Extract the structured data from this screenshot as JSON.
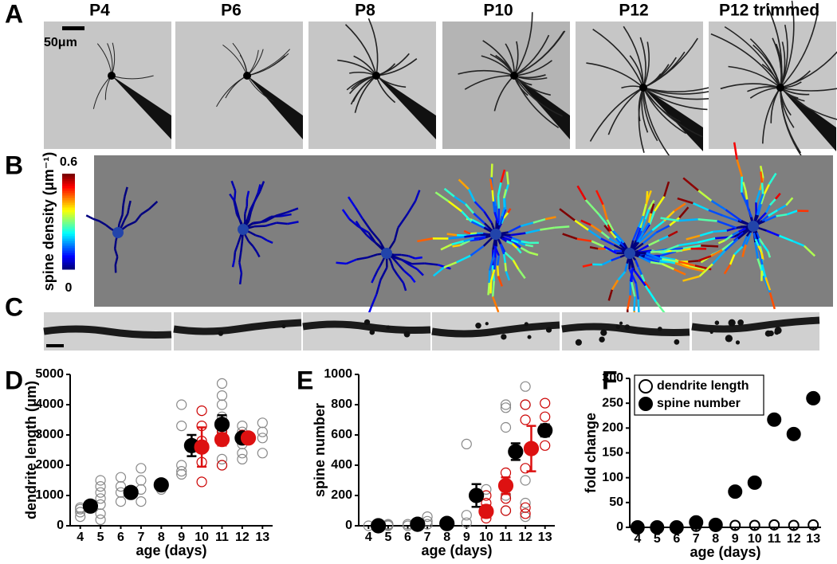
{
  "panel_labels": [
    "A",
    "B",
    "C"
  ],
  "image_titles": [
    "P4",
    "P6",
    "P8",
    "P10",
    "P12",
    "P12 trimmed"
  ],
  "scale_bar": "50μm",
  "colorbar": {
    "label": "spine density (μm⁻¹)",
    "ticks": [
      0,
      0.6
    ]
  },
  "chart_data": [
    {
      "type": "scatter",
      "panel": "D",
      "xlabel": "age (days)",
      "ylabel": "dendrite length (μm)",
      "xlim": [
        3.5,
        13.5
      ],
      "ylim": [
        0,
        5000
      ],
      "xticks": [
        4,
        5,
        6,
        7,
        8,
        9,
        10,
        11,
        12,
        13
      ],
      "yticks": [
        0,
        1000,
        2000,
        3000,
        4000,
        5000
      ],
      "series": [
        {
          "marker": "open",
          "color": "#888888",
          "x": [
            4,
            4,
            4,
            4,
            5,
            5,
            5,
            5,
            5,
            5,
            5,
            6,
            6,
            6,
            6,
            7,
            7,
            7,
            7,
            8,
            8,
            8,
            9,
            9,
            9,
            9,
            9,
            11,
            11,
            11,
            11,
            11,
            11,
            11,
            12,
            12,
            12,
            12,
            12,
            12,
            13,
            13,
            13,
            13
          ],
          "values": [
            300,
            450,
            550,
            600,
            200,
            400,
            700,
            900,
            1100,
            1300,
            1500,
            800,
            1100,
            1300,
            1600,
            800,
            1200,
            1500,
            1900,
            1200,
            1300,
            1400,
            1700,
            1800,
            2000,
            3300,
            4000,
            2000,
            2200,
            3200,
            3600,
            4000,
            4300,
            4700,
            2200,
            2400,
            2700,
            2900,
            3100,
            3300,
            2400,
            2900,
            3100,
            3400
          ]
        },
        {
          "marker": "open",
          "color": "#cc0000",
          "x": [
            10,
            10,
            10,
            10,
            10,
            11,
            11,
            11,
            11,
            12,
            12,
            12
          ],
          "values": [
            1450,
            2100,
            2800,
            3300,
            3800,
            2000,
            2800,
            2900,
            3100,
            2850,
            2950,
            3000
          ]
        },
        {
          "marker": "filled",
          "color": "#000000",
          "x": [
            4.5,
            6.5,
            8,
            9.5,
            11,
            12
          ],
          "values": [
            650,
            1100,
            1350,
            2650,
            3350,
            2900
          ],
          "errors": [
            0,
            0,
            0,
            350,
            300,
            0
          ]
        },
        {
          "marker": "filled",
          "color": "#dd1111",
          "x": [
            10,
            11,
            12.3
          ],
          "values": [
            2600,
            2850,
            2900
          ],
          "errors": [
            650,
            200,
            50
          ]
        }
      ]
    },
    {
      "type": "scatter",
      "panel": "E",
      "xlabel": "age (days)",
      "ylabel": "spine number",
      "xlim": [
        3.5,
        13.5
      ],
      "ylim": [
        0,
        1000
      ],
      "xticks": [
        4,
        5,
        6,
        7,
        8,
        9,
        10,
        11,
        12,
        13
      ],
      "yticks": [
        0,
        200,
        400,
        600,
        800,
        1000
      ],
      "series": [
        {
          "marker": "open",
          "color": "#888888",
          "x": [
            4,
            5,
            5,
            5,
            6,
            6,
            7,
            7,
            7,
            9,
            9,
            9,
            10,
            11,
            11,
            11,
            11,
            11,
            12,
            12,
            12,
            12,
            12
          ],
          "values": [
            0,
            0,
            5,
            10,
            0,
            10,
            10,
            30,
            60,
            20,
            70,
            540,
            240,
            100,
            200,
            650,
            780,
            800,
            60,
            150,
            300,
            800,
            920
          ]
        },
        {
          "marker": "open",
          "color": "#cc0000",
          "x": [
            10,
            10,
            10,
            10,
            11,
            11,
            11,
            11,
            12,
            12,
            12,
            12,
            12,
            13,
            13,
            13,
            13
          ],
          "values": [
            50,
            80,
            150,
            200,
            100,
            180,
            250,
            350,
            80,
            120,
            380,
            700,
            800,
            530,
            620,
            720,
            810
          ]
        },
        {
          "marker": "filled",
          "color": "#000000",
          "x": [
            4.5,
            6.5,
            8,
            9.5,
            11.5,
            13
          ],
          "values": [
            0,
            10,
            15,
            200,
            490,
            630
          ],
          "errors": [
            0,
            0,
            0,
            75,
            55,
            40
          ]
        },
        {
          "marker": "filled",
          "color": "#dd1111",
          "x": [
            10,
            11,
            12.3
          ],
          "values": [
            95,
            265,
            510
          ],
          "errors": [
            40,
            55,
            150
          ]
        }
      ]
    },
    {
      "type": "scatter",
      "panel": "F",
      "xlabel": "age (days)",
      "ylabel": "fold change",
      "legend": "upper left",
      "xlim": [
        3.6,
        13.4
      ],
      "ylim": [
        0,
        300
      ],
      "xticks": [
        4,
        5,
        6,
        7,
        8,
        9,
        10,
        11,
        12,
        13
      ],
      "yticks": [
        0,
        50,
        100,
        150,
        200,
        250,
        300
      ],
      "series": [
        {
          "name": "dendrite length",
          "marker": "open",
          "color": "#000000",
          "x": [
            4,
            5,
            6,
            7,
            8,
            9,
            10,
            11,
            12,
            13
          ],
          "values": [
            1,
            1,
            2,
            2,
            2,
            4,
            4,
            5,
            4,
            5
          ]
        },
        {
          "name": "spine number",
          "marker": "filled",
          "color": "#000000",
          "x": [
            4,
            5,
            6,
            7,
            8,
            9,
            10,
            11,
            12,
            13
          ],
          "values": [
            0,
            0,
            0,
            10,
            5,
            72,
            90,
            217,
            188,
            260
          ]
        }
      ]
    }
  ]
}
